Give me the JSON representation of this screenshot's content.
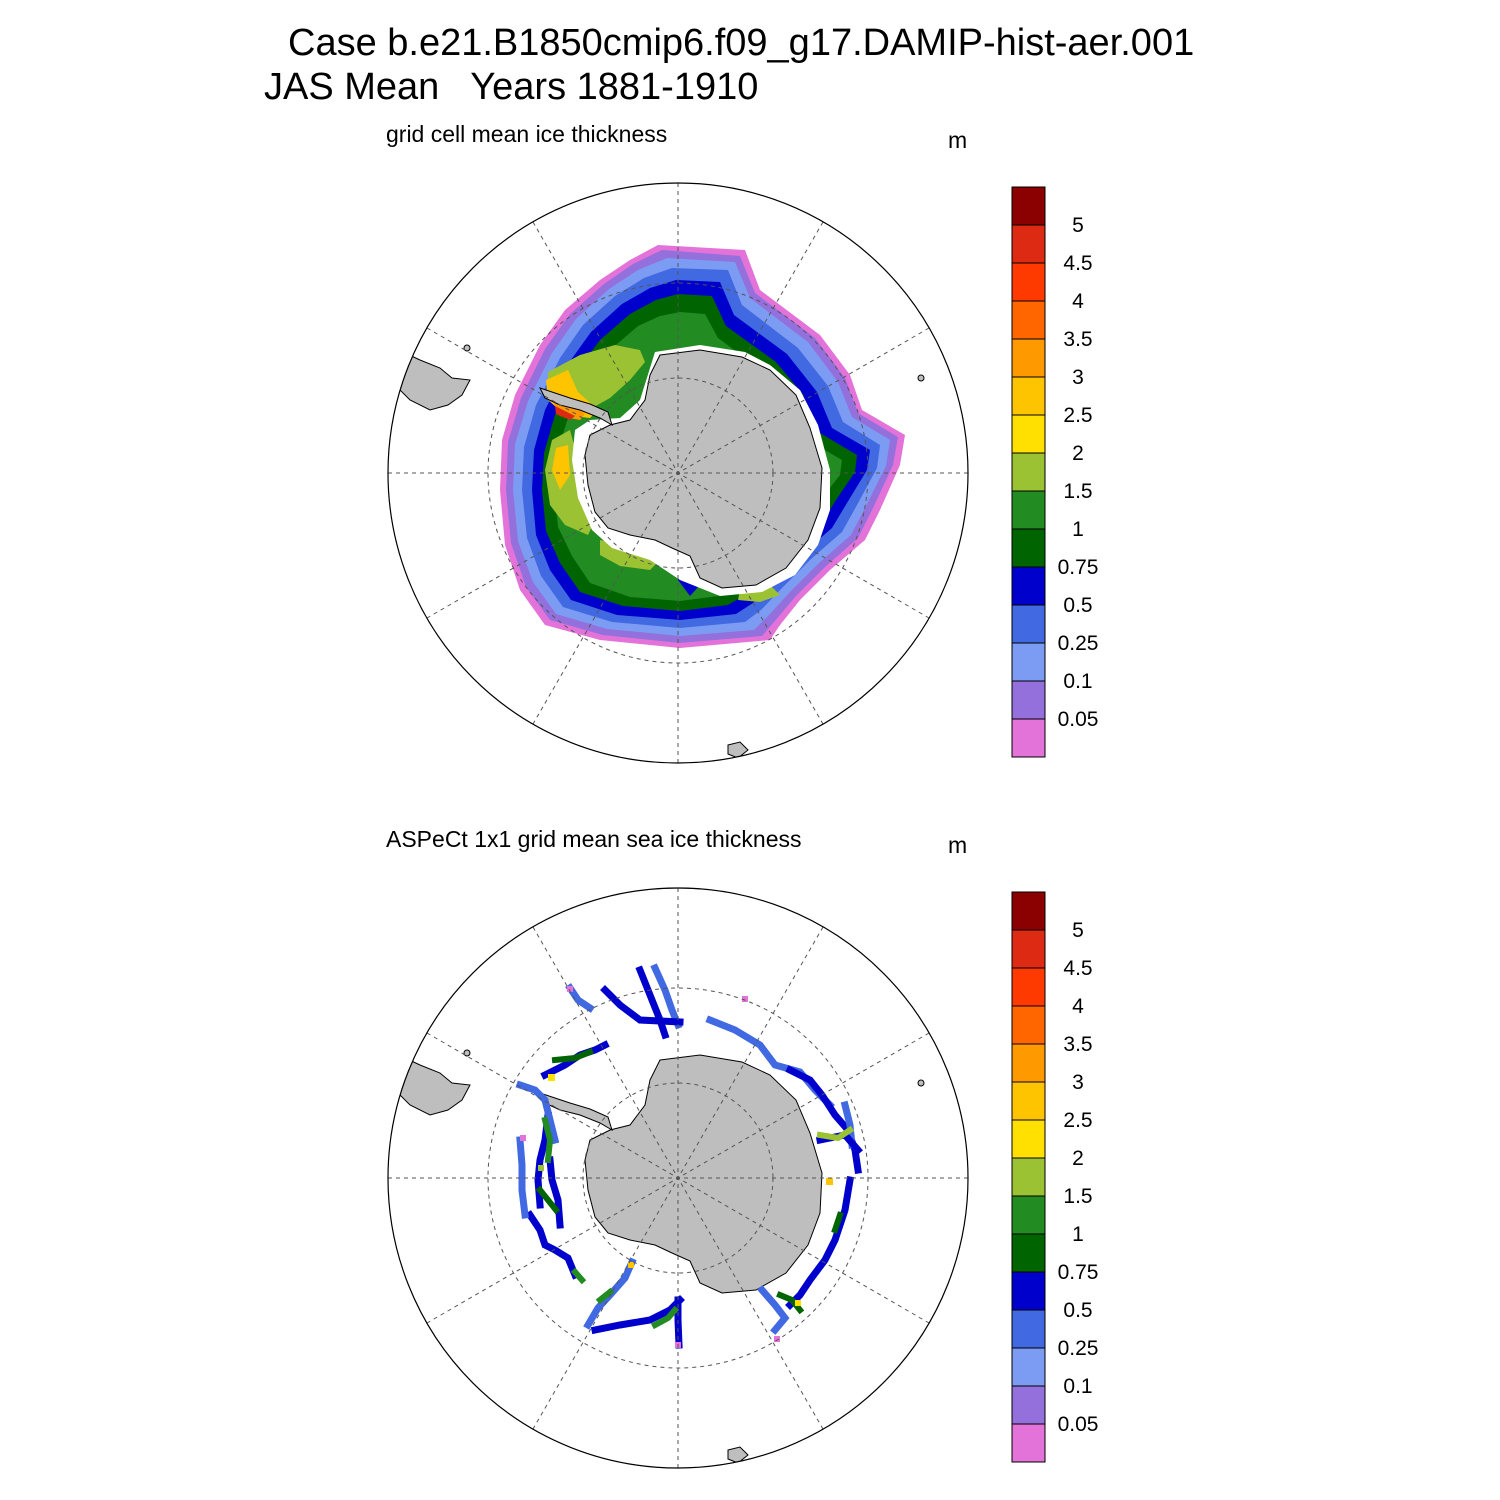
{
  "title": {
    "line1": "Case b.e21.B1850cmip6.f09_g17.DAMIP-hist-aer.001",
    "line2": "JAS Mean   Years 1881-1910"
  },
  "panels": [
    {
      "subtitle": "grid cell mean ice thickness",
      "unit": "m"
    },
    {
      "subtitle": "ASPeCt 1x1 grid mean sea ice thickness",
      "unit": "m"
    }
  ],
  "colorbar": {
    "levels": [
      "5",
      "4.5",
      "4",
      "3.5",
      "3",
      "2.5",
      "2",
      "1.5",
      "1",
      "0.75",
      "0.5",
      "0.25",
      "0.1",
      "0.05"
    ],
    "colors": [
      "#8b0000",
      "#dd2a12",
      "#ff3a00",
      "#ff6600",
      "#ff9900",
      "#ffc400",
      "#ffe000",
      "#9ac232",
      "#228b22",
      "#006400",
      "#0000cd",
      "#4169e1",
      "#7b9cf2",
      "#9370db",
      "#e373d9"
    ]
  },
  "map_colors": {
    "land": "#bebebe",
    "coastline": "#000000",
    "graticule": "#555555"
  }
}
